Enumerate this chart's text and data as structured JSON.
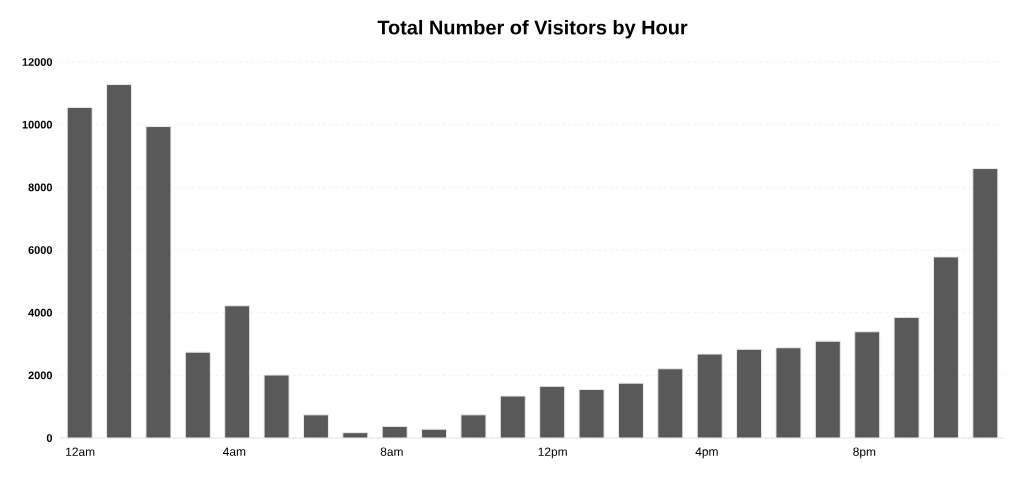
{
  "chart_data": {
    "type": "bar",
    "title": "Total Number of Visitors by Hour",
    "categories": [
      "12am",
      null,
      null,
      null,
      "4am",
      null,
      null,
      null,
      "8am",
      null,
      null,
      null,
      "12pm",
      null,
      null,
      null,
      "4pm",
      null,
      null,
      null,
      "8pm",
      null,
      null,
      null
    ],
    "values": [
      10550,
      11280,
      9940,
      2740,
      4220,
      2010,
      740,
      170,
      370,
      280,
      740,
      1340,
      1650,
      1550,
      1750,
      2210,
      2680,
      2830,
      2880,
      3090,
      3390,
      3850,
      5780,
      8600
    ],
    "color": "#595959",
    "ylim": [
      0,
      12000
    ],
    "yticks": [
      0,
      2000,
      4000,
      6000,
      8000,
      10000,
      12000
    ],
    "grid": "y"
  }
}
